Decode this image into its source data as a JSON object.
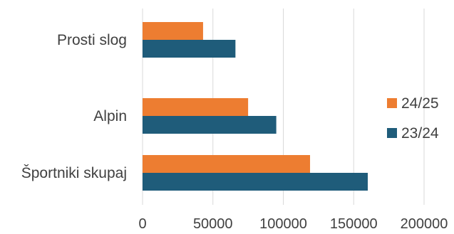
{
  "chart_data": {
    "type": "bar",
    "orientation": "horizontal",
    "title": "",
    "xlabel": "",
    "ylabel": "",
    "categories": [
      "Prosti slog",
      "Alpin",
      "Športniki skupaj"
    ],
    "series": [
      {
        "name": "24/25",
        "color": "#ED7D31",
        "values": [
          43000,
          75000,
          119000
        ]
      },
      {
        "name": "23/24",
        "color": "#1F5C7A",
        "values": [
          66000,
          95000,
          160000
        ]
      }
    ],
    "xlim": [
      0,
      200000
    ],
    "x_ticks": [
      0,
      50000,
      100000,
      150000,
      200000
    ],
    "x_tick_labels": [
      "0",
      "50000",
      "100000",
      "150000",
      "200000"
    ],
    "grid": "vertical",
    "legend_position": "right"
  }
}
